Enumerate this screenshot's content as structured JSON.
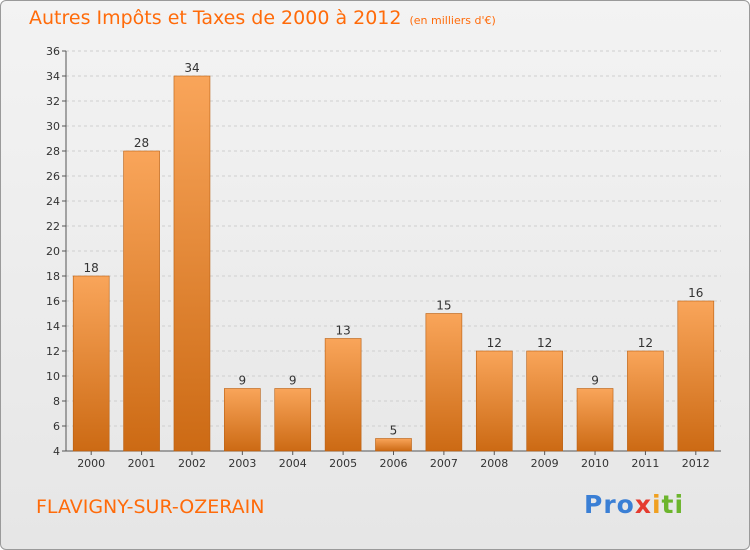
{
  "header": {
    "title": "Autres Impôts et Taxes de 2000 à 2012",
    "subtitle": "(en milliers d'€)"
  },
  "footer": {
    "place": "FLAVIGNY-SUR-OZERAIN",
    "logo": [
      "Pro",
      "x",
      "i",
      "ti"
    ]
  },
  "colors": {
    "title": "#ff6b0a",
    "bar_top": "#f9a55a",
    "bar_bottom": "#cc6a14"
  },
  "chart_data": {
    "type": "bar",
    "title": "Autres Impôts et Taxes de 2000 à 2012",
    "subtitle": "(en milliers d'€)",
    "categories": [
      "2000",
      "2001",
      "2002",
      "2003",
      "2004",
      "2005",
      "2006",
      "2007",
      "2008",
      "2009",
      "2010",
      "2011",
      "2012"
    ],
    "values": [
      18,
      28,
      34,
      9,
      9,
      13,
      5,
      15,
      12,
      12,
      9,
      12,
      16
    ],
    "ylim": [
      4,
      36
    ],
    "yticks": [
      4,
      6,
      8,
      10,
      12,
      14,
      16,
      18,
      20,
      22,
      24,
      26,
      28,
      30,
      32,
      34,
      36
    ],
    "grid": true,
    "xlabel": "",
    "ylabel": ""
  }
}
